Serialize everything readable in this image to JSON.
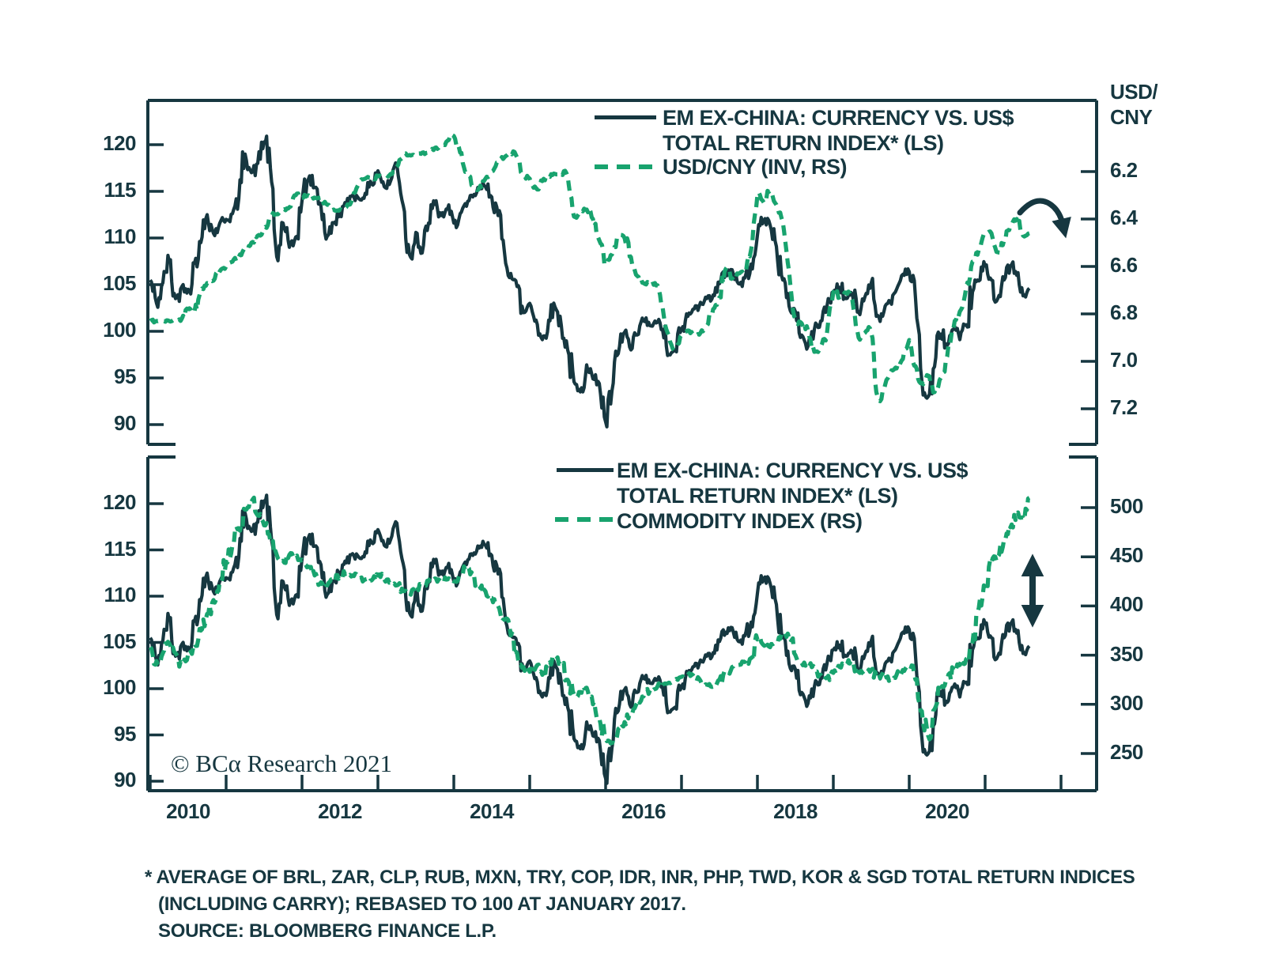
{
  "colors": {
    "navy": "#163740",
    "green": "#18a36e",
    "background": "#ffffff"
  },
  "copyright": "© BCα Research 2021",
  "footnote": {
    "line1": "* AVERAGE OF BRL, ZAR, CLP, RUB, MXN, TRY, COP, IDR, INR, PHP, TWD, KOR & SGD TOTAL RETURN INDICES",
    "line2": "(INCLUDING CARRY); REBASED TO 100 AT JANUARY 2017.",
    "line3": "SOURCE: BLOOMBERG FINANCE L.P."
  },
  "chart_data": [
    {
      "type": "line",
      "panel": "top",
      "x_start": "2010-01",
      "x_frequency": "monthly",
      "x_axis": {
        "tick_years": [
          2010,
          2011,
          2012,
          2013,
          2014,
          2015,
          2016,
          2017,
          2018,
          2019,
          2020,
          2021,
          2022
        ],
        "labels": [
          "2010",
          "2012",
          "2014",
          "2016",
          "2018",
          "2020"
        ],
        "label_year_centers": [
          2010.5,
          2012.5,
          2014.5,
          2016.5,
          2018.5,
          2020.5
        ]
      },
      "left_axis": {
        "tick_labels": [
          "120",
          "115",
          "110",
          "105",
          "100",
          "95",
          "90"
        ],
        "tick_values": [
          120,
          115,
          110,
          105,
          100,
          95,
          90
        ],
        "ylim": [
          88,
          124.7
        ]
      },
      "right_axis": {
        "header_line1": "USD/",
        "header_line2": "CNY",
        "tick_labels": [
          "6.2",
          "6.4",
          "6.6",
          "6.8",
          "7.0",
          "7.2"
        ],
        "tick_values": [
          6.2,
          6.4,
          6.6,
          6.8,
          7.0,
          7.2
        ],
        "inverted": true,
        "ylim": [
          5.9,
          7.35
        ]
      },
      "legend": [
        {
          "style": "solid",
          "color": "navy",
          "lines": [
            "EM EX-CHINA: CURRENCY VS. US$",
            "TOTAL RETURN INDEX* (LS)"
          ]
        },
        {
          "style": "dashed",
          "color": "green",
          "lines": [
            "USD/CNY (INV, RS)"
          ]
        }
      ],
      "annotation": "curved-arrow-pointing-down-right-at-end-of-usdcny-line",
      "series": [
        {
          "name": "EM EX-CHINA: CURRENCY VS. US$ TOTAL RETURN INDEX* (LS)",
          "axis": "left",
          "style": "solid",
          "color": "navy",
          "monthly_values": [
            105.5,
            103.0,
            105.2,
            107.5,
            103.5,
            104.8,
            104.5,
            107.3,
            109.5,
            112.5,
            110.5,
            111.6,
            112.0,
            112.6,
            114.2,
            119.0,
            117.0,
            118.0,
            120.3,
            117.5,
            108.0,
            111.6,
            109.0,
            110.1,
            114.0,
            116.3,
            115.4,
            113.4,
            110.2,
            111.6,
            112.6,
            113.6,
            114.6,
            114.2,
            114.8,
            115.8,
            117.2,
            115.5,
            116.1,
            117.9,
            113.5,
            108.2,
            110.6,
            108.4,
            111.6,
            113.6,
            112.4,
            113.1,
            111.6,
            112.6,
            113.4,
            114.4,
            115.2,
            115.5,
            114.4,
            112.4,
            108.5,
            106.2,
            104.8,
            102.0,
            103.0,
            101.2,
            99.1,
            101.2,
            102.6,
            100.6,
            98.0,
            94.6,
            93.5,
            96.4,
            94.9,
            94.4,
            90.3,
            93.6,
            97.6,
            99.9,
            98.0,
            99.6,
            101.1,
            100.6,
            100.9,
            100.2,
            97.5,
            98.0,
            100.2,
            101.6,
            102.4,
            103.1,
            103.5,
            103.9,
            105.1,
            106.1,
            106.6,
            105.1,
            105.7,
            107.2,
            110.3,
            111.9,
            111.4,
            109.1,
            105.5,
            102.7,
            102.1,
            99.6,
            98.4,
            100.2,
            101.1,
            102.7,
            104.2,
            104.7,
            103.5,
            104.0,
            102.1,
            103.7,
            105.2,
            101.7,
            102.1,
            103.2,
            104.5,
            106.1,
            106.4,
            103.5,
            94.7,
            93.0,
            96.2,
            99.7,
            98.5,
            100.2,
            99.1,
            100.7,
            104.2,
            105.4,
            107.0,
            105.5,
            103.5,
            105.5,
            107.0,
            106.0,
            103.8,
            104.6
          ]
        },
        {
          "name": "USD/CNY (INV, RS)",
          "axis": "right",
          "style": "dashed",
          "color": "green",
          "monthly_values": [
            6.83,
            6.83,
            6.83,
            6.83,
            6.83,
            6.82,
            6.78,
            6.79,
            6.7,
            6.67,
            6.66,
            6.62,
            6.6,
            6.58,
            6.56,
            6.53,
            6.5,
            6.47,
            6.44,
            6.39,
            6.38,
            6.36,
            6.35,
            6.3,
            6.31,
            6.3,
            6.31,
            6.31,
            6.34,
            6.36,
            6.36,
            6.35,
            6.31,
            6.25,
            6.23,
            6.23,
            6.22,
            6.22,
            6.21,
            6.18,
            6.13,
            6.13,
            6.13,
            6.12,
            6.12,
            6.1,
            6.09,
            6.07,
            6.05,
            6.12,
            6.2,
            6.26,
            6.27,
            6.23,
            6.2,
            6.16,
            6.14,
            6.12,
            6.14,
            6.21,
            6.23,
            6.27,
            6.24,
            6.22,
            6.21,
            6.21,
            6.22,
            6.39,
            6.37,
            6.36,
            6.4,
            6.49,
            6.58,
            6.55,
            6.48,
            6.48,
            6.56,
            6.64,
            6.67,
            6.67,
            6.68,
            6.77,
            6.89,
            6.95,
            6.89,
            6.87,
            6.89,
            6.88,
            6.85,
            6.78,
            6.73,
            6.61,
            6.65,
            6.63,
            6.62,
            6.53,
            6.3,
            6.33,
            6.28,
            6.34,
            6.41,
            6.62,
            6.82,
            6.84,
            6.87,
            6.96,
            6.94,
            6.88,
            6.71,
            6.73,
            6.71,
            6.74,
            6.9,
            6.88,
            6.88,
            7.15,
            7.12,
            7.05,
            7.03,
            6.99,
            6.91,
            7.02,
            7.09,
            7.06,
            7.13,
            7.07,
            6.98,
            6.86,
            6.79,
            6.69,
            6.58,
            6.53,
            6.46,
            6.46,
            6.54,
            6.49,
            6.43,
            6.4,
            6.47,
            6.46
          ]
        }
      ]
    },
    {
      "type": "line",
      "panel": "bottom",
      "x_start": "2010-01",
      "x_frequency": "monthly",
      "x_axis": {
        "tick_years": [
          2010,
          2011,
          2012,
          2013,
          2014,
          2015,
          2016,
          2017,
          2018,
          2019,
          2020,
          2021,
          2022
        ],
        "labels": [
          "2010",
          "2012",
          "2014",
          "2016",
          "2018",
          "2020"
        ],
        "label_year_centers": [
          2010.5,
          2012.5,
          2014.5,
          2016.5,
          2018.5,
          2020.5
        ]
      },
      "left_axis": {
        "tick_labels": [
          "120",
          "115",
          "110",
          "105",
          "100",
          "95",
          "90"
        ],
        "tick_values": [
          120,
          115,
          110,
          105,
          100,
          95,
          90
        ],
        "ylim": [
          88.9,
          125.2
        ]
      },
      "right_axis": {
        "tick_labels": [
          "500",
          "450",
          "400",
          "350",
          "300",
          "250"
        ],
        "tick_values": [
          500,
          450,
          400,
          350,
          300,
          250
        ],
        "inverted": false,
        "ylim": [
          212,
          551
        ]
      },
      "legend": [
        {
          "style": "solid",
          "color": "navy",
          "lines": [
            "EM EX-CHINA: CURRENCY VS. US$",
            "TOTAL RETURN INDEX* (LS)"
          ]
        },
        {
          "style": "dashed",
          "color": "green",
          "lines": [
            "COMMODITY INDEX (RS)"
          ]
        }
      ],
      "annotation": "double-headed-vertical-arrow-between-line-ends",
      "series": [
        {
          "name": "EM EX-CHINA: CURRENCY VS. US$ TOTAL RETURN INDEX* (LS)",
          "axis": "left",
          "style": "solid",
          "color": "navy",
          "monthly_values": [
            105.5,
            103.0,
            105.2,
            107.5,
            103.5,
            104.8,
            104.5,
            107.3,
            109.5,
            112.5,
            110.5,
            111.6,
            112.0,
            112.6,
            114.2,
            119.0,
            117.0,
            118.0,
            120.3,
            117.5,
            108.0,
            111.6,
            109.0,
            110.1,
            114.0,
            116.3,
            115.4,
            113.4,
            110.2,
            111.6,
            112.6,
            113.6,
            114.6,
            114.2,
            114.8,
            115.8,
            117.2,
            115.5,
            116.1,
            117.9,
            113.5,
            108.2,
            110.6,
            108.4,
            111.6,
            113.6,
            112.4,
            113.1,
            111.6,
            112.6,
            113.4,
            114.4,
            115.2,
            115.5,
            114.4,
            112.4,
            108.5,
            106.2,
            104.8,
            102.0,
            103.0,
            101.2,
            99.1,
            101.2,
            102.6,
            100.6,
            98.0,
            94.6,
            93.5,
            96.4,
            94.9,
            94.4,
            90.3,
            93.6,
            97.6,
            99.9,
            98.0,
            99.6,
            101.1,
            100.6,
            100.9,
            100.2,
            97.5,
            98.0,
            100.2,
            101.6,
            102.4,
            103.1,
            103.5,
            103.9,
            105.1,
            106.1,
            106.6,
            105.1,
            105.7,
            107.2,
            110.3,
            111.9,
            111.4,
            109.1,
            105.5,
            102.7,
            102.1,
            99.6,
            98.4,
            100.2,
            101.1,
            102.7,
            104.2,
            104.7,
            103.5,
            104.0,
            102.1,
            103.7,
            105.2,
            101.7,
            102.1,
            103.2,
            104.5,
            106.1,
            106.4,
            103.5,
            94.7,
            93.0,
            96.2,
            99.7,
            98.5,
            100.2,
            99.1,
            100.7,
            104.2,
            105.4,
            107.0,
            105.5,
            103.5,
            105.5,
            107.0,
            106.0,
            103.8,
            104.6
          ]
        },
        {
          "name": "COMMODITY INDEX (RS)",
          "axis": "right",
          "style": "dashed",
          "color": "green",
          "monthly_values": [
            358,
            344,
            352,
            362,
            352,
            341,
            351,
            362,
            375,
            392,
            406,
            425,
            445,
            462,
            478,
            498,
            506,
            492,
            482,
            466,
            452,
            446,
            452,
            450,
            447,
            440,
            431,
            424,
            421,
            426,
            431,
            434,
            431,
            428,
            427,
            426,
            431,
            427,
            424,
            421,
            415,
            413,
            418,
            421,
            425,
            428,
            425,
            427,
            425,
            431,
            437,
            430,
            421,
            415,
            408,
            400,
            386,
            370,
            352,
            338,
            333,
            338,
            330,
            340,
            346,
            340,
            325,
            310,
            312,
            317,
            300,
            286,
            265,
            261,
            275,
            282,
            290,
            302,
            308,
            314,
            316,
            320,
            322,
            325,
            328,
            330,
            328,
            324,
            320,
            318,
            325,
            332,
            338,
            340,
            343,
            347,
            366,
            360,
            358,
            364,
            372,
            368,
            350,
            342,
            340,
            338,
            330,
            327,
            332,
            338,
            340,
            343,
            333,
            330,
            335,
            328,
            334,
            325,
            330,
            335,
            338,
            325,
            293,
            268,
            295,
            317,
            325,
            335,
            340,
            346,
            362,
            398,
            420,
            444,
            450,
            468,
            480,
            494,
            490,
            510
          ]
        }
      ]
    }
  ]
}
